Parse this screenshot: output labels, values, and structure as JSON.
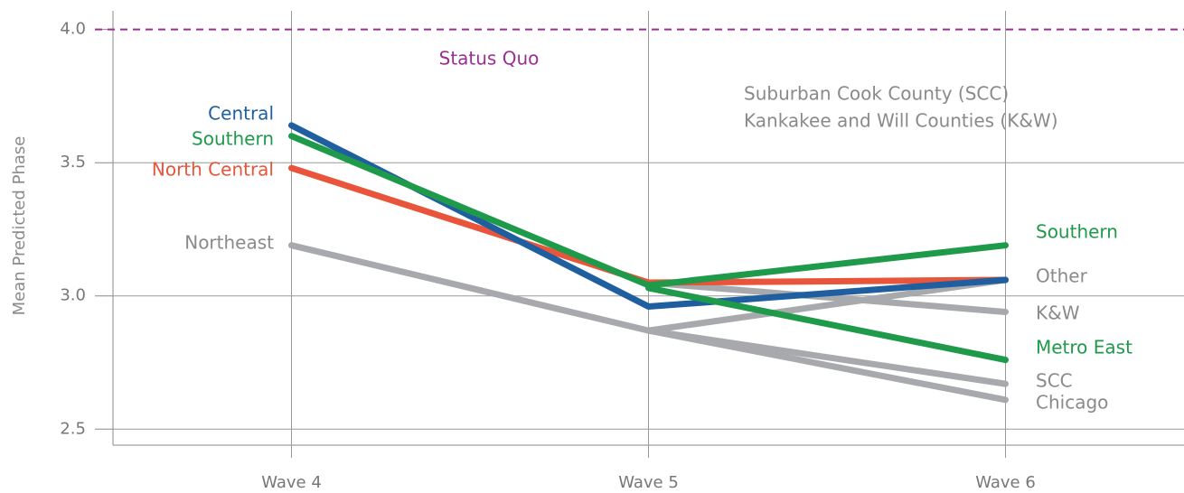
{
  "chart_data": {
    "type": "line",
    "ylabel": "Mean Predicted Phase",
    "categories": [
      "Wave 4",
      "Wave 5",
      "Wave 6"
    ],
    "ylim": [
      2.44,
      4.07
    ],
    "yticks": [
      {
        "value": 2.5,
        "label": "2.5"
      },
      {
        "value": 3,
        "label": "3.0"
      },
      {
        "value": 3.5,
        "label": "3.5"
      },
      {
        "value": 4,
        "label": "4.0"
      }
    ],
    "grid": true,
    "reference_line": {
      "value": 4,
      "label": "Status Quo",
      "color": "#9b2f91"
    },
    "annotations": [
      "Suburban Cook County (SCC)",
      "Kankakee and Will Counties (K&W)"
    ],
    "series": [
      {
        "name": "Northeast",
        "color": "#a7a9ac",
        "label_color": "#8a8a8a",
        "values": [
          3.19,
          2.87,
          null
        ]
      },
      {
        "name": "Other",
        "color": "#a7a9ac",
        "label_color": "#8a8a8a",
        "values": [
          null,
          2.87,
          3.06
        ]
      },
      {
        "name": "K&W",
        "color": "#a7a9ac",
        "label_color": "#8a8a8a",
        "values": [
          null,
          3.05,
          2.94
        ]
      },
      {
        "name": "SCC",
        "color": "#a7a9ac",
        "label_color": "#8a8a8a",
        "values": [
          null,
          2.87,
          2.67
        ]
      },
      {
        "name": "Chicago",
        "color": "#a7a9ac",
        "label_color": "#8a8a8a",
        "values": [
          null,
          2.87,
          2.61
        ]
      },
      {
        "name": "North Central",
        "color": "#e8553a",
        "label_color": "#e8553a",
        "values": [
          3.48,
          3.05,
          3.06
        ]
      },
      {
        "name": "Central",
        "color": "#1f5fa0",
        "label_color": "#1f5fa0",
        "values": [
          3.64,
          2.96,
          3.06
        ]
      },
      {
        "name": "Metro East",
        "color": "#1e9a4a",
        "label_color": "#1e9a4a",
        "values": [
          null,
          3.03,
          2.76
        ]
      },
      {
        "name": "Southern",
        "color": "#1e9a4a",
        "label_color": "#1e9a4a",
        "values": [
          3.6,
          3.04,
          3.19
        ]
      }
    ]
  }
}
